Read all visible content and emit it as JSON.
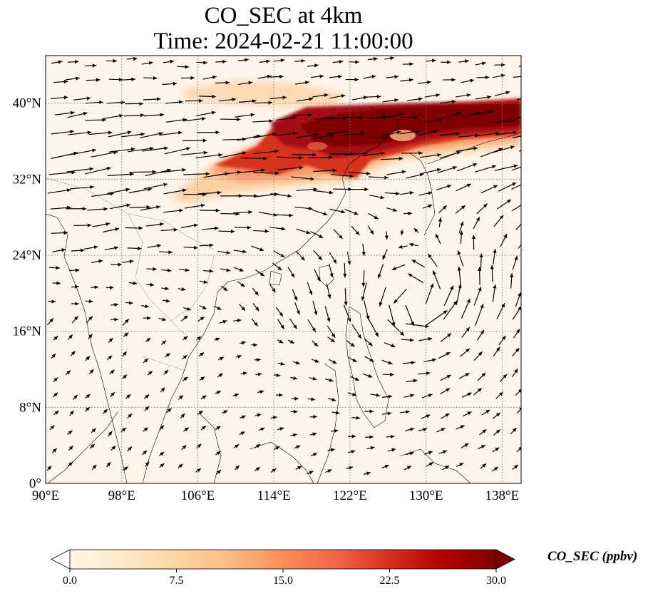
{
  "title": {
    "line1": "CO_SEC at 4km",
    "line2": "Time: 2024-02-21 11:00:00"
  },
  "map": {
    "extent": {
      "lon": [
        90,
        140
      ],
      "lat": [
        0,
        45
      ]
    },
    "lon_ticks": [
      {
        "value": 90,
        "label": "90°E"
      },
      {
        "value": 98,
        "label": "98°E"
      },
      {
        "value": 106,
        "label": "106°E"
      },
      {
        "value": 114,
        "label": "114°E"
      },
      {
        "value": 122,
        "label": "122°E"
      },
      {
        "value": 130,
        "label": "130°E"
      },
      {
        "value": 138,
        "label": "138°E"
      }
    ],
    "lat_ticks": [
      {
        "value": 0,
        "label": "0°"
      },
      {
        "value": 8,
        "label": "8°N"
      },
      {
        "value": 16,
        "label": "16°N"
      },
      {
        "value": 24,
        "label": "24°N"
      },
      {
        "value": 32,
        "label": "32°N"
      },
      {
        "value": 40,
        "label": "40°N"
      }
    ],
    "gridlines": "dotted",
    "background_color": "#fff5eb",
    "wind_vectors": true,
    "cyclonic_center": {
      "lon": 129,
      "lat": 19
    }
  },
  "colorbar": {
    "label": "CO_SEC (ppbv)",
    "ticks": [
      "0.0",
      "7.5",
      "15.0",
      "22.5",
      "30.0"
    ],
    "range": [
      0,
      30
    ],
    "extend": "both",
    "colormap": "OrRd",
    "colors": [
      "#fff7ec",
      "#fee8c8",
      "#fdd49e",
      "#fdbb84",
      "#fc8d59",
      "#ef6548",
      "#d7301f",
      "#b30000",
      "#7f0000"
    ]
  }
}
